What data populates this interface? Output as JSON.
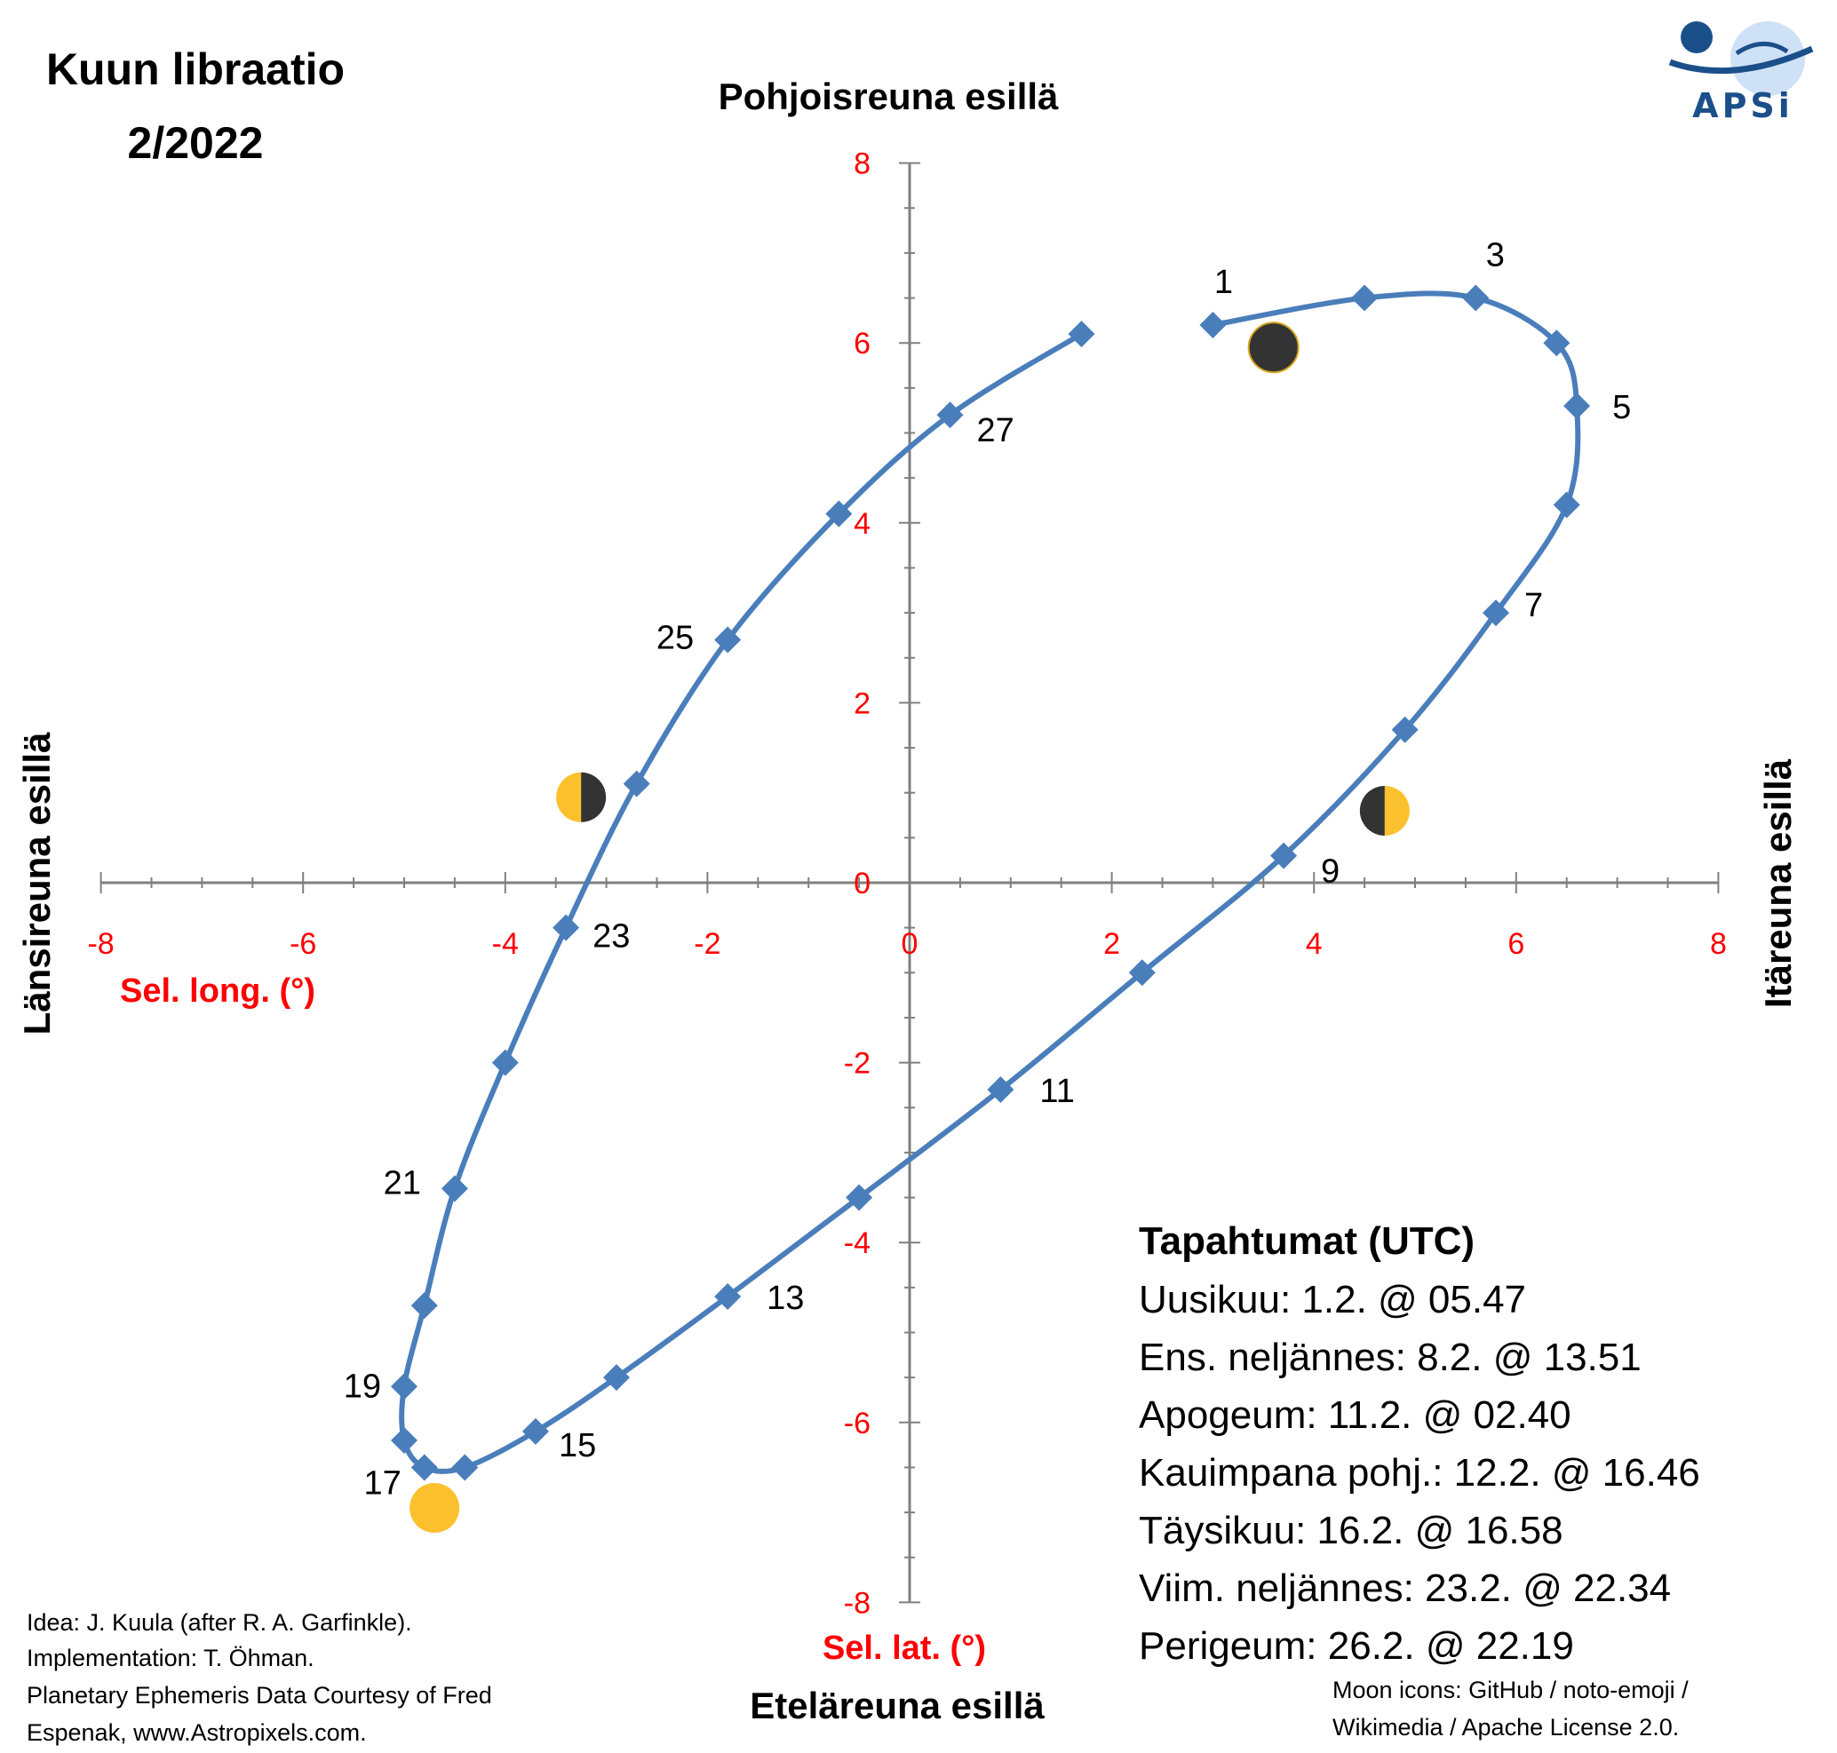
{
  "title_lines": [
    "Kuun libraatio",
    "2/2022"
  ],
  "edges": {
    "north": "Pohjoisreuna esillä",
    "south": "Eteläreuna esillä",
    "west": "Länsireuna esillä",
    "east": "Itäreuna esillä"
  },
  "logo": {
    "text": "APSi",
    "icon": "apsi-planet-orbit-logo",
    "color": "#1b4f8a"
  },
  "chart_data": {
    "type": "scatter",
    "xlabel": "Sel. long. (°)",
    "ylabel": "Sel. lat. (°)",
    "xlim": [
      -8,
      8
    ],
    "ylim": [
      -8,
      8
    ],
    "x_ticks": [
      "-8",
      "-6",
      "-4",
      "-2",
      "0",
      "2",
      "4",
      "6",
      "8"
    ],
    "y_ticks": [
      "-8",
      "-6",
      "-4",
      "-2",
      "0",
      "2",
      "4",
      "6",
      "8"
    ],
    "line_color": "#4a7ebb",
    "tick_color": "#ff0000",
    "grid": false,
    "series": [
      {
        "x": [
          3.0,
          4.5,
          5.6,
          6.4,
          6.6,
          6.5,
          5.8,
          4.9,
          3.7,
          2.3,
          0.9,
          -0.5,
          -1.8,
          -2.9,
          -3.7,
          -4.4,
          -4.8,
          -5.0,
          -5.0,
          -4.8,
          -4.5,
          -4.0,
          -3.4,
          -2.7,
          -1.8,
          -0.7,
          0.4,
          1.7
        ],
        "y": [
          6.2,
          6.5,
          6.5,
          6.0,
          5.3,
          4.2,
          3.0,
          1.7,
          0.3,
          -1.0,
          -2.3,
          -3.5,
          -4.6,
          -5.5,
          -6.1,
          -6.5,
          -6.5,
          -6.2,
          -5.6,
          -4.7,
          -3.4,
          -2.0,
          -0.5,
          1.1,
          2.7,
          4.1,
          5.2,
          6.1
        ]
      }
    ],
    "point_labels": [
      {
        "day": "1",
        "x": 3.0,
        "y": 6.2
      },
      {
        "day": "3",
        "x": 5.6,
        "y": 6.5
      },
      {
        "day": "5",
        "x": 6.6,
        "y": 5.3
      },
      {
        "day": "7",
        "x": 5.8,
        "y": 3.0
      },
      {
        "day": "9",
        "x": 3.7,
        "y": 0.3
      },
      {
        "day": "11",
        "x": 0.9,
        "y": -2.3
      },
      {
        "day": "13",
        "x": -1.8,
        "y": -4.6
      },
      {
        "day": "15",
        "x": -3.7,
        "y": -6.1
      },
      {
        "day": "17",
        "x": -4.8,
        "y": -6.5
      },
      {
        "day": "19",
        "x": -5.0,
        "y": -5.6
      },
      {
        "day": "21",
        "x": -4.5,
        "y": -3.4
      },
      {
        "day": "23",
        "x": -3.4,
        "y": -0.5
      },
      {
        "day": "25",
        "x": -1.8,
        "y": 2.7
      },
      {
        "day": "27",
        "x": 0.4,
        "y": 5.2
      }
    ],
    "moon_phases": [
      {
        "phase": "new-moon",
        "icon": "new-moon-icon",
        "x": 3.6,
        "y": 5.95
      },
      {
        "phase": "first-quarter",
        "icon": "first-quarter-moon-icon",
        "x": 4.7,
        "y": 0.8
      },
      {
        "phase": "full-moon",
        "icon": "full-moon-icon",
        "x": -4.7,
        "y": -6.95
      },
      {
        "phase": "last-quarter",
        "icon": "last-quarter-moon-icon",
        "x": -3.25,
        "y": 0.95
      }
    ],
    "moon_colors": {
      "lit": "#fbc02d",
      "dark": "#333333"
    }
  },
  "events": {
    "title": "Tapahtumat (UTC)",
    "items": [
      "Uusikuu: 1.2. @ 05.47",
      "Ens. neljännes: 8.2. @ 13.51",
      "Apogeum: 11.2. @ 02.40",
      "Kauimpana pohj.: 12.2. @ 16.46",
      "Täysikuu: 16.2. @ 16.58",
      "Viim. neljännes: 23.2. @ 22.34",
      "Perigeum: 26.2. @ 22.19"
    ]
  },
  "credits": [
    "Idea: J. Kuula (after R.  A. Garfinkle).",
    "Implementation: T. Öhman.",
    "Planetary Ephemeris Data Courtesy of Fred",
    "Espenak, www.Astropixels.com."
  ],
  "icon_credits": [
    "Moon icons:  GitHub / noto-emoji /",
    "Wikimedia / Apache License 2.0."
  ]
}
